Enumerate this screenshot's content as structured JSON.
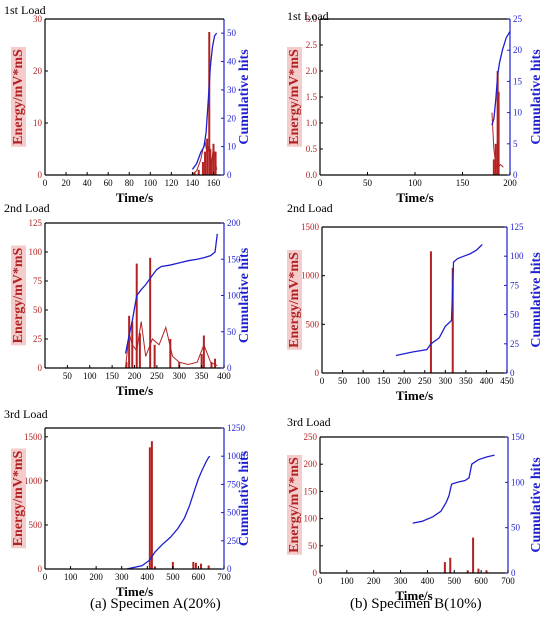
{
  "captions": [
    "(a) Specimen A(20%)",
    "(b) Specimen B(10%)"
  ],
  "colors": {
    "energy": "#b22222",
    "hits": "#1f1fd0",
    "axis": "#000000",
    "label_bg": "#f4cccc"
  },
  "chart_data": [
    {
      "type": "bar+line",
      "title": "1st Load",
      "xlabel": "Time/s",
      "ylabel_left": "Energy/mV*mS",
      "ylabel_right": "Cumulative hits",
      "xlim": [
        0,
        170
      ],
      "xticks": [
        0,
        20,
        40,
        60,
        80,
        100,
        120,
        140,
        160
      ],
      "ylim_left": [
        0,
        30
      ],
      "yticks_left": [
        0,
        10,
        20,
        30
      ],
      "ylim_right": [
        0,
        55
      ],
      "yticks_right": [
        0,
        10,
        20,
        30,
        40,
        50
      ],
      "energy_bars": [
        [
          142,
          0.5
        ],
        [
          146,
          1.0
        ],
        [
          150,
          2.5
        ],
        [
          152,
          4.5
        ],
        [
          154,
          7.0
        ],
        [
          156,
          27.5
        ],
        [
          157,
          5.0
        ],
        [
          158,
          3.0
        ],
        [
          160,
          6.0
        ],
        [
          162,
          4.5
        ]
      ],
      "energy_line": [
        [
          140,
          0.2
        ],
        [
          144,
          0.8
        ],
        [
          148,
          3.0
        ],
        [
          150,
          5.0
        ],
        [
          152,
          6.5
        ],
        [
          154,
          4.0
        ],
        [
          156,
          6.0
        ],
        [
          158,
          2.0
        ],
        [
          160,
          5.5
        ],
        [
          163,
          1.0
        ]
      ],
      "hits": [
        [
          140,
          2
        ],
        [
          144,
          4
        ],
        [
          148,
          8
        ],
        [
          151,
          10
        ],
        [
          153,
          15
        ],
        [
          155,
          26
        ],
        [
          157,
          38
        ],
        [
          159,
          45
        ],
        [
          161,
          49
        ],
        [
          163,
          50
        ]
      ]
    },
    {
      "type": "bar+line",
      "title": "1st Load",
      "xlabel": "Time/s",
      "ylabel_left": "Energy/mV*mS",
      "ylabel_right": "Cumulative hits",
      "xlim": [
        0,
        200
      ],
      "xticks": [
        0,
        50,
        100,
        150,
        200
      ],
      "ylim_left": [
        0,
        3.0
      ],
      "yticks_left": [
        0.0,
        0.5,
        1.0,
        1.5,
        2.0,
        2.5,
        3.0
      ],
      "ylim_right": [
        0,
        25
      ],
      "yticks_right": [
        0,
        5,
        10,
        15,
        20,
        25
      ],
      "energy_bars": [
        [
          183,
          0.3
        ],
        [
          185,
          0.6
        ],
        [
          187,
          2.0
        ],
        [
          188,
          1.6
        ]
      ],
      "energy_line": [
        [
          181,
          1.2
        ],
        [
          183,
          0.5
        ],
        [
          185,
          0.2
        ],
        [
          187,
          0.15
        ],
        [
          190,
          0.2
        ],
        [
          193,
          0.15
        ]
      ],
      "hits": [
        [
          181,
          8
        ],
        [
          183,
          9
        ],
        [
          185,
          12
        ],
        [
          187,
          16
        ],
        [
          189,
          18
        ],
        [
          192,
          20
        ],
        [
          196,
          22
        ],
        [
          200,
          23
        ]
      ]
    },
    {
      "type": "bar+line",
      "title": "2nd Load",
      "xlabel": "Time/s",
      "ylabel_left": "Energy/mV*mS",
      "ylabel_right": "Cumulative hits",
      "xlim": [
        0,
        400
      ],
      "xticks": [
        50,
        100,
        150,
        200,
        250,
        300,
        350,
        400
      ],
      "ylim_left": [
        0,
        125
      ],
      "yticks_left": [
        0,
        25,
        50,
        75,
        100,
        125
      ],
      "ylim_right": [
        0,
        200
      ],
      "yticks_right": [
        0,
        50,
        100,
        150,
        200
      ],
      "energy_bars": [
        [
          182,
          5
        ],
        [
          188,
          45
        ],
        [
          195,
          40
        ],
        [
          205,
          90
        ],
        [
          212,
          30
        ],
        [
          235,
          95
        ],
        [
          245,
          20
        ],
        [
          280,
          25
        ],
        [
          300,
          5
        ],
        [
          350,
          12
        ],
        [
          355,
          28
        ],
        [
          372,
          5
        ],
        [
          380,
          8
        ]
      ],
      "energy_line": [
        [
          180,
          0
        ],
        [
          188,
          30
        ],
        [
          195,
          20
        ],
        [
          205,
          15
        ],
        [
          215,
          40
        ],
        [
          225,
          10
        ],
        [
          240,
          25
        ],
        [
          255,
          20
        ],
        [
          270,
          35
        ],
        [
          285,
          10
        ],
        [
          300,
          5
        ],
        [
          320,
          3
        ],
        [
          340,
          5
        ],
        [
          355,
          20
        ],
        [
          370,
          5
        ],
        [
          385,
          2
        ]
      ],
      "hits": [
        [
          180,
          20
        ],
        [
          188,
          45
        ],
        [
          195,
          65
        ],
        [
          205,
          100
        ],
        [
          215,
          108
        ],
        [
          225,
          115
        ],
        [
          240,
          128
        ],
        [
          250,
          136
        ],
        [
          260,
          140
        ],
        [
          280,
          142
        ],
        [
          300,
          145
        ],
        [
          320,
          148
        ],
        [
          340,
          150
        ],
        [
          355,
          152
        ],
        [
          370,
          155
        ],
        [
          380,
          160
        ],
        [
          385,
          185
        ]
      ]
    },
    {
      "type": "bar+line",
      "title": "2nd Load",
      "xlabel": "Time/s",
      "ylabel_left": "Energy/mV*mS",
      "ylabel_right": "Cumulative hits",
      "xlim": [
        0,
        450
      ],
      "xticks": [
        0,
        50,
        100,
        150,
        200,
        250,
        300,
        350,
        400,
        450
      ],
      "ylim_left": [
        0,
        1500
      ],
      "yticks_left": [
        0,
        500,
        1000,
        1500
      ],
      "ylim_right": [
        0,
        125
      ],
      "yticks_right": [
        0,
        25,
        50,
        75,
        100,
        125
      ],
      "energy_bars": [
        [
          265,
          1250
        ],
        [
          318,
          1080
        ]
      ],
      "energy_line": [],
      "hits": [
        [
          180,
          15
        ],
        [
          220,
          18
        ],
        [
          255,
          20
        ],
        [
          265,
          25
        ],
        [
          285,
          30
        ],
        [
          300,
          40
        ],
        [
          315,
          45
        ],
        [
          320,
          95
        ],
        [
          330,
          98
        ],
        [
          345,
          100
        ],
        [
          360,
          102
        ],
        [
          375,
          105
        ],
        [
          390,
          110
        ]
      ]
    },
    {
      "type": "bar+line",
      "title": "3rd Load",
      "xlabel": "Time/s",
      "ylabel_left": "Energy/mV*mS",
      "ylabel_right": "Cumulative hits",
      "xlim": [
        0,
        700
      ],
      "xticks": [
        0,
        100,
        200,
        300,
        400,
        500,
        600,
        700
      ],
      "ylim_left": [
        0,
        1600
      ],
      "yticks_left": [
        0,
        500,
        1000,
        1500
      ],
      "ylim_right": [
        0,
        1250
      ],
      "yticks_right": [
        0,
        250,
        500,
        750,
        1000,
        1250
      ],
      "energy_bars": [
        [
          410,
          1380
        ],
        [
          418,
          1450
        ],
        [
          430,
          30
        ],
        [
          500,
          80
        ],
        [
          580,
          80
        ],
        [
          590,
          70
        ],
        [
          610,
          60
        ],
        [
          640,
          40
        ]
      ],
      "energy_line": [],
      "hits": [
        [
          320,
          0
        ],
        [
          380,
          30
        ],
        [
          410,
          80
        ],
        [
          430,
          150
        ],
        [
          460,
          220
        ],
        [
          490,
          280
        ],
        [
          520,
          360
        ],
        [
          545,
          450
        ],
        [
          565,
          560
        ],
        [
          585,
          700
        ],
        [
          600,
          800
        ],
        [
          615,
          880
        ],
        [
          630,
          950
        ],
        [
          640,
          990
        ],
        [
          645,
          1000
        ]
      ]
    },
    {
      "type": "bar+line",
      "title": "3rd Load",
      "xlabel": "Time/s",
      "ylabel_left": "Energy/mV*mS",
      "ylabel_right": "Cumulative hits",
      "xlim": [
        0,
        700
      ],
      "xticks": [
        0,
        100,
        200,
        300,
        400,
        500,
        600,
        700
      ],
      "ylim_left": [
        0,
        250
      ],
      "yticks_left": [
        0,
        50,
        100,
        150,
        200,
        250
      ],
      "ylim_right": [
        0,
        150
      ],
      "yticks_right": [
        0,
        50,
        100,
        150
      ],
      "energy_bars": [
        [
          465,
          20
        ],
        [
          485,
          28
        ],
        [
          550,
          5
        ],
        [
          570,
          65
        ],
        [
          590,
          8
        ],
        [
          620,
          5
        ]
      ],
      "energy_line": [],
      "hits": [
        [
          345,
          55
        ],
        [
          380,
          57
        ],
        [
          420,
          62
        ],
        [
          450,
          68
        ],
        [
          470,
          78
        ],
        [
          480,
          85
        ],
        [
          490,
          98
        ],
        [
          510,
          100
        ],
        [
          540,
          102
        ],
        [
          555,
          105
        ],
        [
          565,
          120
        ],
        [
          590,
          125
        ],
        [
          620,
          128
        ],
        [
          650,
          130
        ]
      ]
    }
  ]
}
